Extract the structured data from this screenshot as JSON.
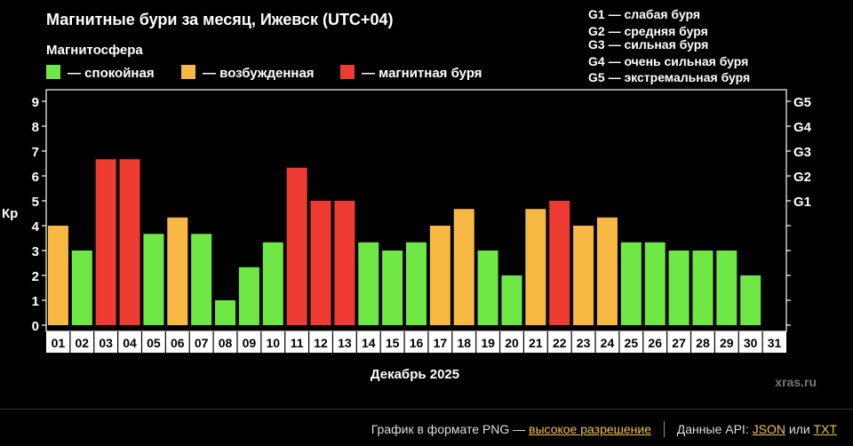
{
  "chart_data": {
    "type": "bar",
    "title": "Магнитные бури за месяц, Ижевск (UTC+04)",
    "legend_title": "Магнитосфера",
    "legend": [
      {
        "key": "quiet",
        "label": "— спокойная",
        "color": "#6fe846"
      },
      {
        "key": "active",
        "label": "— возбужденная",
        "color": "#f7b944"
      },
      {
        "key": "storm",
        "label": "— магнитная буря",
        "color": "#ee3c33"
      }
    ],
    "storm_scale": [
      "G1 — слабая буря",
      "G2 — средняя буря",
      "G3 — сильная буря",
      "G4 — очень сильная буря",
      "G5 — экстремальная буря"
    ],
    "ylabel": "Кр",
    "xlabel": "Декабрь 2025",
    "ylim": [
      0,
      9
    ],
    "y_ticks": [
      "0",
      "1",
      "2",
      "3",
      "4",
      "5",
      "6",
      "7",
      "8",
      "9"
    ],
    "right_ticks": [
      {
        "label": "G1",
        "value": 5
      },
      {
        "label": "G2",
        "value": 6
      },
      {
        "label": "G3",
        "value": 7
      },
      {
        "label": "G4",
        "value": 8
      },
      {
        "label": "G5",
        "value": 9
      }
    ],
    "categories": [
      "01",
      "02",
      "03",
      "04",
      "05",
      "06",
      "07",
      "08",
      "09",
      "10",
      "11",
      "12",
      "13",
      "14",
      "15",
      "16",
      "17",
      "18",
      "19",
      "20",
      "21",
      "22",
      "23",
      "24",
      "25",
      "26",
      "27",
      "28",
      "29",
      "30",
      "31"
    ],
    "values": [
      4,
      3,
      6.67,
      6.67,
      3.67,
      4.33,
      3.67,
      1,
      2.33,
      3.33,
      6.33,
      5,
      5,
      3.33,
      3,
      3.33,
      4,
      4.67,
      3,
      2,
      4.67,
      5,
      4,
      4.33,
      3.33,
      3.33,
      3,
      3,
      3,
      2,
      null
    ],
    "levels": [
      "active",
      "quiet",
      "storm",
      "storm",
      "quiet",
      "active",
      "quiet",
      "quiet",
      "quiet",
      "quiet",
      "storm",
      "storm",
      "storm",
      "quiet",
      "quiet",
      "quiet",
      "active",
      "active",
      "quiet",
      "quiet",
      "active",
      "storm",
      "active",
      "active",
      "quiet",
      "quiet",
      "quiet",
      "quiet",
      "quiet",
      "quiet",
      null
    ],
    "watermark": "xras.ru"
  },
  "footer": {
    "png_text": "График в формате PNG —",
    "png_link": "высокое разрешение",
    "api_text": "Данные API:",
    "json_link": "JSON",
    "or_text": "или",
    "txt_link": "TXT"
  }
}
